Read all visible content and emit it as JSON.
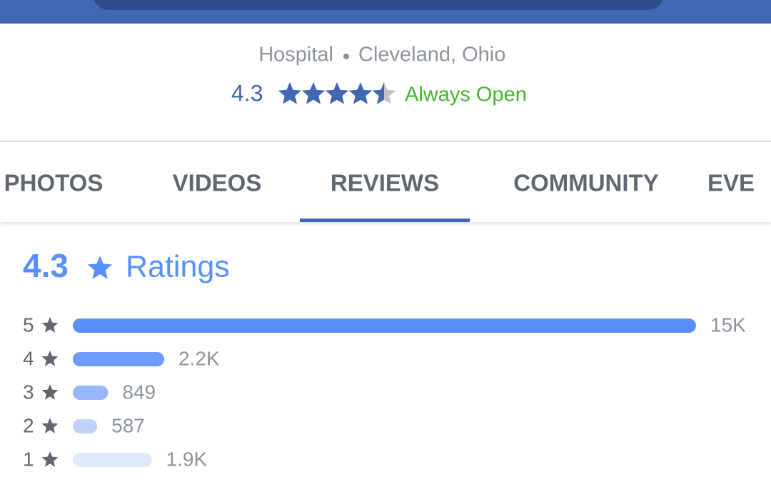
{
  "header": {
    "category": "Hospital",
    "location": "Cleveland, Ohio",
    "rating": 4.3,
    "status": "Always Open"
  },
  "tabs": {
    "items": [
      "PHOTOS",
      "VIDEOS",
      "REVIEWS",
      "COMMUNITY",
      "EVE"
    ],
    "active": 2
  },
  "ratings": {
    "average": 4.3,
    "label": "Ratings",
    "rows": [
      {
        "stars": 5,
        "count": 15000,
        "count_label": "15K",
        "color": "#5890ff"
      },
      {
        "stars": 4,
        "count": 2200,
        "count_label": "2.2K",
        "color": "#6f9dff"
      },
      {
        "stars": 3,
        "count": 849,
        "count_label": "849",
        "color": "#97b6fb"
      },
      {
        "stars": 2,
        "count": 587,
        "count_label": "587",
        "color": "#bed1fb"
      },
      {
        "stars": 1,
        "count": 1900,
        "count_label": "1.9K",
        "color": "#e0e9fb"
      }
    ]
  }
}
